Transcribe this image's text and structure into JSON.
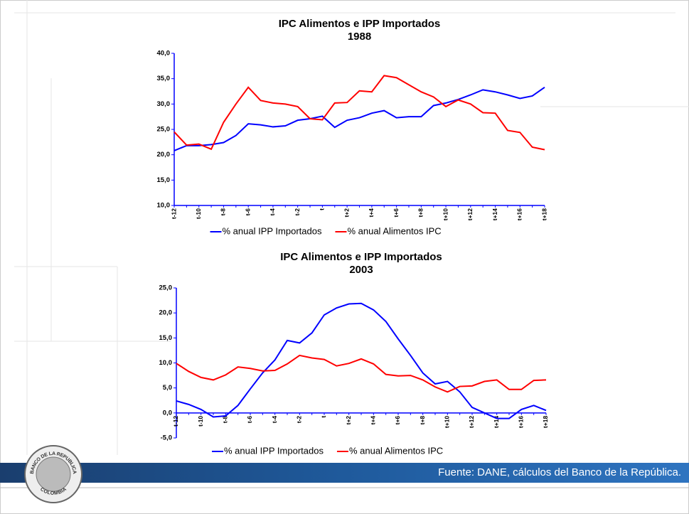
{
  "chart_data": [
    {
      "type": "line",
      "title": "IPC Alimentos e IPP Importados",
      "subtitle": "1988",
      "categories": [
        "t-12",
        null,
        "t-10",
        null,
        "t-8",
        null,
        "t-6",
        null,
        "t-4",
        null,
        "t-2",
        null,
        "t",
        null,
        "t+2",
        null,
        "t+4",
        null,
        "t+6",
        null,
        "t+8",
        null,
        "t+10",
        null,
        "t+12",
        null,
        "t+14",
        null,
        "t+16",
        null,
        "t+18"
      ],
      "series": [
        {
          "name": "% anual IPP Importados",
          "color": "#0000ff",
          "values": [
            20.8,
            21.8,
            21.8,
            22.0,
            22.4,
            23.8,
            26.1,
            25.9,
            25.5,
            25.7,
            26.8,
            27.1,
            27.6,
            25.4,
            26.8,
            27.3,
            28.2,
            28.7,
            27.3,
            27.5,
            27.5,
            29.7,
            30.2,
            30.9,
            31.8,
            32.8,
            32.4,
            31.8,
            31.1,
            31.6,
            33.3
          ]
        },
        {
          "name": "% anual Alimentos IPC",
          "color": "#ff0000",
          "values": [
            24.5,
            21.9,
            22.1,
            21.1,
            26.4,
            30.0,
            33.3,
            30.7,
            30.2,
            30.0,
            29.5,
            27.1,
            26.9,
            30.2,
            30.3,
            32.6,
            32.4,
            35.6,
            35.2,
            33.8,
            32.4,
            31.4,
            29.5,
            30.8,
            30.0,
            28.3,
            28.2,
            24.8,
            24.4,
            21.5,
            21.0
          ]
        }
      ],
      "ylim": [
        10,
        40
      ],
      "yticks": [
        {
          "value": 10,
          "label": "10,0"
        },
        {
          "value": 15,
          "label": "15,0"
        },
        {
          "value": 20,
          "label": "20,0"
        },
        {
          "value": 25,
          "label": "25,0"
        },
        {
          "value": 30,
          "label": "30,0"
        },
        {
          "value": 35,
          "label": "35,0"
        },
        {
          "value": 40,
          "label": "40,0"
        }
      ],
      "legend": "bottom"
    },
    {
      "type": "line",
      "title": "IPC Alimentos e IPP Importados",
      "subtitle": "2003",
      "categories": [
        "t-12",
        null,
        "t-10",
        null,
        "t-8",
        null,
        "t-6",
        null,
        "t-4",
        null,
        "t-2",
        null,
        "t",
        null,
        "t+2",
        null,
        "t+4",
        null,
        "t+6",
        null,
        "t+8",
        null,
        "t+10",
        null,
        "t+12",
        null,
        "t+14",
        null,
        "t+16",
        null,
        "t+18"
      ],
      "series": [
        {
          "name": "% anual IPP Importados",
          "color": "#0000ff",
          "values": [
            2.4,
            1.7,
            0.7,
            -0.8,
            -0.6,
            1.5,
            4.8,
            8.0,
            10.6,
            14.5,
            14.0,
            16.0,
            19.6,
            21.0,
            21.8,
            21.9,
            20.6,
            18.3,
            14.8,
            11.5,
            8.0,
            5.8,
            6.3,
            4.2,
            1.1,
            0.0,
            -1.1,
            -1.1,
            0.7,
            1.5,
            0.5
          ]
        },
        {
          "name": "% anual Alimentos IPC",
          "color": "#ff0000",
          "values": [
            9.9,
            8.3,
            7.1,
            6.6,
            7.6,
            9.2,
            8.9,
            8.4,
            8.5,
            9.8,
            11.5,
            11.0,
            10.7,
            9.4,
            9.9,
            10.8,
            9.8,
            7.7,
            7.4,
            7.5,
            6.6,
            5.2,
            4.2,
            5.3,
            5.4,
            6.3,
            6.6,
            4.7,
            4.7,
            6.5,
            6.6
          ]
        }
      ],
      "ylim": [
        -5,
        25
      ],
      "yticks": [
        {
          "value": -5,
          "label": "-5,0"
        },
        {
          "value": 0,
          "label": "0,0"
        },
        {
          "value": 5,
          "label": "5,0"
        },
        {
          "value": 10,
          "label": "10,0"
        },
        {
          "value": 15,
          "label": "15,0"
        },
        {
          "value": 20,
          "label": "20,0"
        },
        {
          "value": 25,
          "label": "25,0"
        }
      ],
      "legend": "bottom"
    }
  ],
  "footer": "Fuente: DANE, cálculos del Banco de la República.",
  "logo": {
    "top": "BANCO DE LA REPUBLICA",
    "bottom": "COLOMBIA"
  }
}
